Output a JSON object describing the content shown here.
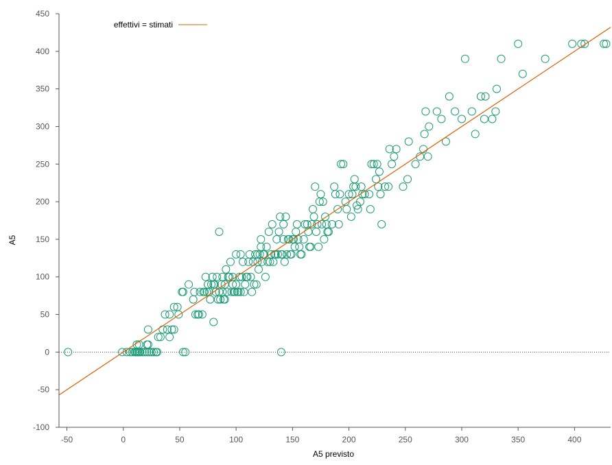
{
  "chart_data": {
    "type": "scatter",
    "xlabel": "A5 previsto",
    "ylabel": "A5",
    "xlim": [
      -57,
      432
    ],
    "ylim": [
      -100,
      450
    ],
    "xticks": [
      -50,
      0,
      50,
      100,
      150,
      200,
      250,
      300,
      350,
      400
    ],
    "yticks": [
      -100,
      -50,
      0,
      50,
      100,
      150,
      200,
      250,
      300,
      350,
      400,
      450
    ],
    "legend_position": "top-left",
    "colors": {
      "points": "#1a9b73",
      "fit_line": "#d95f02",
      "zero_line": "#555555",
      "axis": "#555555"
    },
    "fit_line": {
      "name": "effettivi = stimati",
      "slope": 1,
      "intercept": 0
    },
    "series": [
      {
        "points": [
          [
            -49,
            0
          ],
          [
            -1,
            0
          ],
          [
            3,
            0
          ],
          [
            6,
            0
          ],
          [
            8,
            0
          ],
          [
            10,
            0
          ],
          [
            11,
            0
          ],
          [
            12,
            0
          ],
          [
            13,
            0
          ],
          [
            14,
            0
          ],
          [
            15,
            0
          ],
          [
            17,
            0
          ],
          [
            19,
            0
          ],
          [
            21,
            0
          ],
          [
            23,
            0
          ],
          [
            25,
            0
          ],
          [
            27,
            0
          ],
          [
            29,
            0
          ],
          [
            30,
            0
          ],
          [
            53,
            0
          ],
          [
            55,
            0
          ],
          [
            140,
            0
          ],
          [
            12,
            10
          ],
          [
            14,
            10
          ],
          [
            21,
            10
          ],
          [
            22,
            10
          ],
          [
            22,
            30
          ],
          [
            31,
            20
          ],
          [
            33,
            20
          ],
          [
            35,
            30
          ],
          [
            39,
            30
          ],
          [
            41,
            20
          ],
          [
            41,
            50
          ],
          [
            43,
            30
          ],
          [
            45,
            30
          ],
          [
            45,
            60
          ],
          [
            48,
            60
          ],
          [
            49,
            50
          ],
          [
            37,
            50
          ],
          [
            52,
            80
          ],
          [
            53,
            80
          ],
          [
            58,
            90
          ],
          [
            62,
            70
          ],
          [
            63,
            80
          ],
          [
            64,
            50
          ],
          [
            66,
            50
          ],
          [
            67,
            50
          ],
          [
            68,
            80
          ],
          [
            70,
            50
          ],
          [
            71,
            80
          ],
          [
            72,
            80
          ],
          [
            73,
            100
          ],
          [
            74,
            80
          ],
          [
            75,
            90
          ],
          [
            76,
            80
          ],
          [
            77,
            70
          ],
          [
            78,
            90
          ],
          [
            79,
            100
          ],
          [
            80,
            90
          ],
          [
            80,
            40
          ],
          [
            81,
            90
          ],
          [
            82,
            80
          ],
          [
            83,
            100
          ],
          [
            84,
            70
          ],
          [
            85,
            160
          ],
          [
            85,
            80
          ],
          [
            86,
            70
          ],
          [
            87,
            90
          ],
          [
            88,
            100
          ],
          [
            88,
            80
          ],
          [
            89,
            70
          ],
          [
            90,
            70
          ],
          [
            90,
            90
          ],
          [
            91,
            110
          ],
          [
            92,
            80
          ],
          [
            93,
            100
          ],
          [
            94,
            100
          ],
          [
            95,
            120
          ],
          [
            96,
            80
          ],
          [
            97,
            90
          ],
          [
            97,
            100
          ],
          [
            98,
            80
          ],
          [
            99,
            80
          ],
          [
            100,
            130
          ],
          [
            100,
            90
          ],
          [
            101,
            80
          ],
          [
            102,
            80
          ],
          [
            103,
            100
          ],
          [
            104,
            130
          ],
          [
            104,
            80
          ],
          [
            105,
            100
          ],
          [
            106,
            120
          ],
          [
            107,
            80
          ],
          [
            108,
            90
          ],
          [
            109,
            100
          ],
          [
            110,
            100
          ],
          [
            111,
            120
          ],
          [
            112,
            130
          ],
          [
            113,
            100
          ],
          [
            114,
            80
          ],
          [
            115,
            120
          ],
          [
            116,
            90
          ],
          [
            117,
            130
          ],
          [
            118,
            90
          ],
          [
            119,
            130
          ],
          [
            119,
            120
          ],
          [
            120,
            110
          ],
          [
            121,
            130
          ],
          [
            122,
            150
          ],
          [
            122,
            140
          ],
          [
            123,
            120
          ],
          [
            124,
            130
          ],
          [
            125,
            130
          ],
          [
            126,
            100
          ],
          [
            127,
            140
          ],
          [
            128,
            120
          ],
          [
            129,
            160
          ],
          [
            130,
            120
          ],
          [
            131,
            130
          ],
          [
            132,
            170
          ],
          [
            133,
            120
          ],
          [
            134,
            130
          ],
          [
            135,
            130
          ],
          [
            136,
            150
          ],
          [
            137,
            130
          ],
          [
            138,
            160
          ],
          [
            139,
            180
          ],
          [
            140,
            130
          ],
          [
            141,
            130
          ],
          [
            142,
            170
          ],
          [
            142,
            150
          ],
          [
            143,
            120
          ],
          [
            144,
            180
          ],
          [
            145,
            130
          ],
          [
            146,
            150
          ],
          [
            147,
            150
          ],
          [
            148,
            130
          ],
          [
            149,
            130
          ],
          [
            150,
            150
          ],
          [
            151,
            150
          ],
          [
            152,
            140
          ],
          [
            153,
            160
          ],
          [
            154,
            170
          ],
          [
            155,
            150
          ],
          [
            156,
            140
          ],
          [
            157,
            130
          ],
          [
            158,
            130
          ],
          [
            160,
            150
          ],
          [
            161,
            170
          ],
          [
            163,
            170
          ],
          [
            164,
            160
          ],
          [
            165,
            140
          ],
          [
            166,
            140
          ],
          [
            167,
            170
          ],
          [
            168,
            190
          ],
          [
            169,
            180
          ],
          [
            170,
            220
          ],
          [
            171,
            160
          ],
          [
            172,
            170
          ],
          [
            173,
            140
          ],
          [
            174,
            200
          ],
          [
            175,
            210
          ],
          [
            176,
            170
          ],
          [
            177,
            200
          ],
          [
            178,
            150
          ],
          [
            179,
            180
          ],
          [
            180,
            170
          ],
          [
            181,
            160
          ],
          [
            182,
            160
          ],
          [
            185,
            170
          ],
          [
            187,
            220
          ],
          [
            188,
            210
          ],
          [
            190,
            190
          ],
          [
            191,
            170
          ],
          [
            192,
            210
          ],
          [
            193,
            250
          ],
          [
            195,
            250
          ],
          [
            197,
            200
          ],
          [
            198,
            190
          ],
          [
            200,
            210
          ],
          [
            202,
            180
          ],
          [
            203,
            210
          ],
          [
            204,
            220
          ],
          [
            205,
            230
          ],
          [
            206,
            220
          ],
          [
            207,
            195
          ],
          [
            208,
            190
          ],
          [
            210,
            200
          ],
          [
            211,
            220
          ],
          [
            212,
            210
          ],
          [
            214,
            210
          ],
          [
            218,
            210
          ],
          [
            219,
            190
          ],
          [
            220,
            250
          ],
          [
            222,
            250
          ],
          [
            224,
            230
          ],
          [
            225,
            250
          ],
          [
            226,
            220
          ],
          [
            227,
            240
          ],
          [
            228,
            210
          ],
          [
            229,
            170
          ],
          [
            232,
            220
          ],
          [
            235,
            220
          ],
          [
            236,
            270
          ],
          [
            238,
            250
          ],
          [
            240,
            260
          ],
          [
            242,
            270
          ],
          [
            248,
            220
          ],
          [
            252,
            230
          ],
          [
            253,
            280
          ],
          [
            259,
            250
          ],
          [
            263,
            260
          ],
          [
            266,
            270
          ],
          [
            267,
            290
          ],
          [
            268,
            320
          ],
          [
            270,
            260
          ],
          [
            271,
            300
          ],
          [
            278,
            320
          ],
          [
            282,
            310
          ],
          [
            286,
            280
          ],
          [
            289,
            340
          ],
          [
            294,
            320
          ],
          [
            300,
            310
          ],
          [
            303,
            390
          ],
          [
            309,
            320
          ],
          [
            312,
            290
          ],
          [
            317,
            340
          ],
          [
            320,
            310
          ],
          [
            321,
            340
          ],
          [
            327,
            310
          ],
          [
            330,
            320
          ],
          [
            331,
            350
          ],
          [
            335,
            390
          ],
          [
            350,
            410
          ],
          [
            354,
            370
          ],
          [
            374,
            390
          ],
          [
            398,
            410
          ],
          [
            406,
            410
          ],
          [
            409,
            410
          ],
          [
            426,
            410
          ],
          [
            428,
            410
          ]
        ]
      }
    ]
  }
}
